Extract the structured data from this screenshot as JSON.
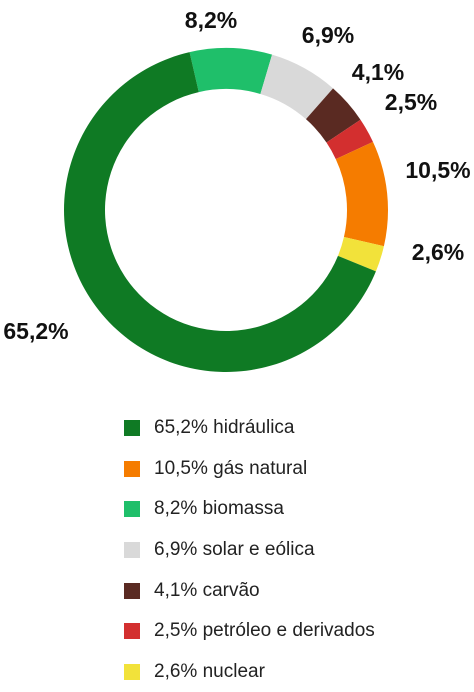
{
  "chart_data": {
    "type": "pie",
    "variant": "donut",
    "slices": [
      {
        "label": "8,2%",
        "value": 8.2,
        "legend": "8,2% biomassa",
        "color": "#1fbf6a"
      },
      {
        "label": "6,9%",
        "value": 6.9,
        "legend": "6,9% solar e eólica",
        "color": "#d9d9d9"
      },
      {
        "label": "4,1%",
        "value": 4.1,
        "legend": "4,1% carvão",
        "color": "#5a2a22"
      },
      {
        "label": "2,5%",
        "value": 2.5,
        "legend": "2,5% petróleo e derivados",
        "color": "#d32f2f"
      },
      {
        "label": "10,5%",
        "value": 10.5,
        "legend": "10,5% gás natural",
        "color": "#f57c00"
      },
      {
        "label": "2,6%",
        "value": 2.6,
        "legend": "2,6% nuclear",
        "color": "#f2e23a"
      },
      {
        "label": "65,2%",
        "value": 65.2,
        "legend": "65,2% hidráulica",
        "color": "#0f7a24"
      }
    ],
    "legend_order": [
      6,
      4,
      0,
      1,
      2,
      3,
      5
    ],
    "legend_placement": "bottom"
  }
}
